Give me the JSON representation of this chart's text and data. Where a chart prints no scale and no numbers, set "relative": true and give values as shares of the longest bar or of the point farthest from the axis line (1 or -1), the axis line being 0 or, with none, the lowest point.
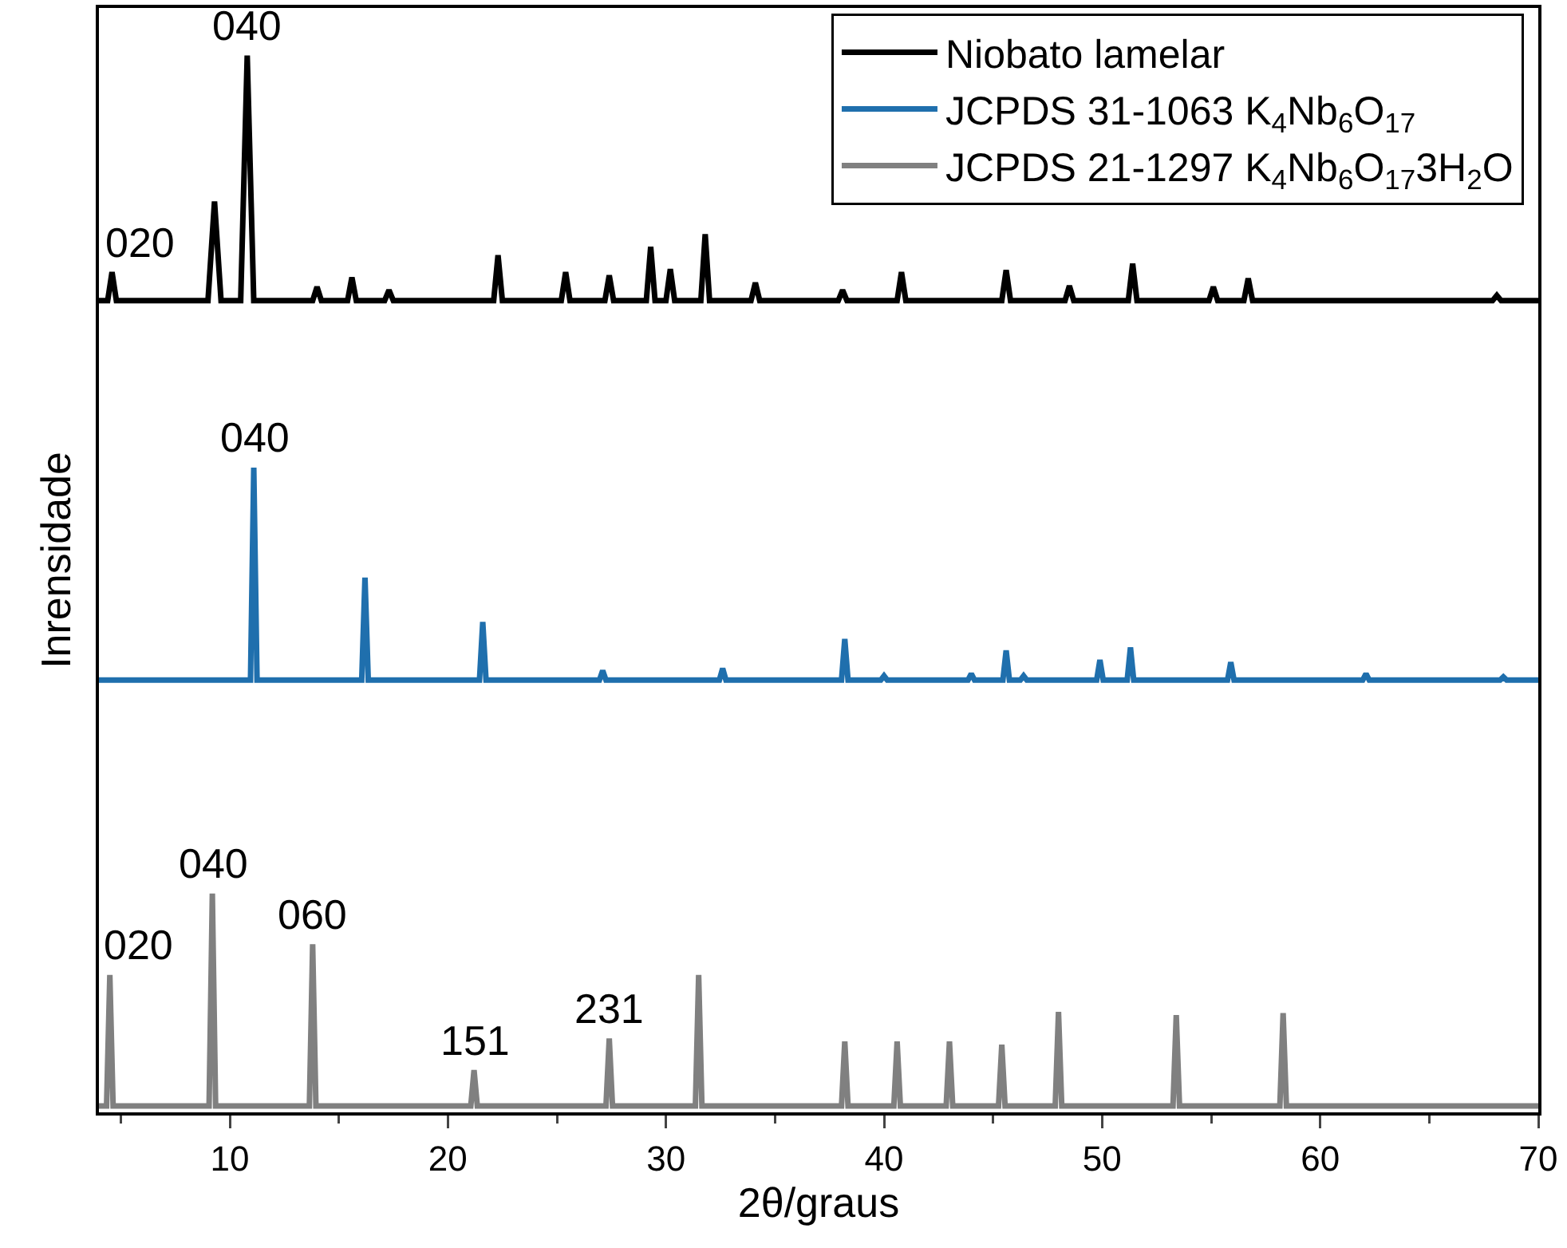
{
  "chart_data": {
    "type": "line",
    "relative": true,
    "xlabel": "2θ/graus",
    "ylabel": "Inrensidade",
    "xlim": [
      4,
      70
    ],
    "xticks": [
      10,
      20,
      30,
      40,
      50,
      60,
      70
    ],
    "legend": "top right",
    "grid": false,
    "marker": "none",
    "line_style": "solid",
    "series": [
      {
        "name": "Niobato lamelar",
        "color": "#000000",
        "x": [
          4,
          4.4,
          4.6,
          4.8,
          9.0,
          9.3,
          9.6,
          10.5,
          10.8,
          11.1,
          13.8,
          14.0,
          14.2,
          15.4,
          15.6,
          15.8,
          17.1,
          17.3,
          17.5,
          22.1,
          22.3,
          22.5,
          25.2,
          25.4,
          25.6,
          27.2,
          27.4,
          27.6,
          29.1,
          29.3,
          29.5,
          30.0,
          30.2,
          30.4,
          31.6,
          31.8,
          32.0,
          33.9,
          34.1,
          34.3,
          37.9,
          38.1,
          38.3,
          40.6,
          40.8,
          41.0,
          45.4,
          45.6,
          45.8,
          48.3,
          48.5,
          48.7,
          51.2,
          51.4,
          51.6,
          54.9,
          55.1,
          55.3,
          56.5,
          56.7,
          56.9,
          67.9,
          68.1,
          68.3,
          70
        ],
        "values": [
          0.768,
          0.768,
          0.795,
          0.768,
          0.768,
          0.862,
          0.768,
          0.768,
          1,
          0.768,
          0.768,
          0.781,
          0.768,
          0.768,
          0.79,
          0.768,
          0.768,
          0.778,
          0.768,
          0.768,
          0.811,
          0.768,
          0.768,
          0.795,
          0.768,
          0.768,
          0.792,
          0.768,
          0.768,
          0.819,
          0.768,
          0.768,
          0.798,
          0.768,
          0.768,
          0.831,
          0.768,
          0.768,
          0.785,
          0.768,
          0.768,
          0.778,
          0.768,
          0.768,
          0.795,
          0.768,
          0.768,
          0.797,
          0.768,
          0.768,
          0.782,
          0.768,
          0.768,
          0.803,
          0.768,
          0.768,
          0.781,
          0.768,
          0.768,
          0.789,
          0.768,
          0.768,
          0.773,
          0.768,
          0.768
        ]
      },
      {
        "name": "JCPDS 31-1063 K$_{4}$Nb$_{6}$O$_{17}$",
        "color": "#1f6fad",
        "x": [
          4,
          10.95,
          11.1,
          11.25,
          16.05,
          16.2,
          16.35,
          21.45,
          21.6,
          21.75,
          26.95,
          27.1,
          27.25,
          32.45,
          32.6,
          32.75,
          38.05,
          38.2,
          38.35,
          39.85,
          40.0,
          40.15,
          43.85,
          44.0,
          44.15,
          45.45,
          45.6,
          45.75,
          46.25,
          46.4,
          46.55,
          49.75,
          49.9,
          50.05,
          51.15,
          51.3,
          51.45,
          55.75,
          55.9,
          56.05,
          61.95,
          62.1,
          62.25,
          68.25,
          68.4,
          68.55,
          70
        ],
        "values": [
          0.409,
          0.409,
          0.61,
          0.409,
          0.409,
          0.506,
          0.409,
          0.409,
          0.464,
          0.409,
          0.409,
          0.418,
          0.409,
          0.409,
          0.42,
          0.409,
          0.409,
          0.448,
          0.409,
          0.409,
          0.413,
          0.409,
          0.409,
          0.415,
          0.409,
          0.409,
          0.437,
          0.409,
          0.409,
          0.413,
          0.409,
          0.409,
          0.428,
          0.409,
          0.409,
          0.44,
          0.409,
          0.409,
          0.426,
          0.409,
          0.409,
          0.415,
          0.409,
          0.409,
          0.412,
          0.409,
          0.409
        ]
      },
      {
        "name": "JCPDS 21-1297 K$_{4}$Nb$_{6}$O$_{17}$3H$_{2}$O",
        "color": "#808080",
        "x": [
          4,
          4.35,
          4.5,
          4.65,
          9.05,
          9.2,
          9.35,
          13.65,
          13.8,
          13.95,
          21.05,
          21.2,
          21.35,
          27.25,
          27.4,
          27.55,
          31.35,
          31.5,
          31.65,
          38.05,
          38.2,
          38.35,
          40.45,
          40.6,
          40.75,
          42.85,
          43.0,
          43.15,
          45.25,
          45.4,
          45.55,
          47.85,
          48.0,
          48.15,
          53.25,
          53.4,
          53.55,
          58.15,
          58.3,
          58.45,
          70
        ],
        "values": [
          0.006,
          0.006,
          0.13,
          0.006,
          0.006,
          0.207,
          0.006,
          0.006,
          0.159,
          0.006,
          0.006,
          0.04,
          0.006,
          0.006,
          0.07,
          0.006,
          0.006,
          0.13,
          0.006,
          0.006,
          0.067,
          0.006,
          0.006,
          0.067,
          0.006,
          0.006,
          0.067,
          0.006,
          0.006,
          0.064,
          0.006,
          0.006,
          0.095,
          0.006,
          0.006,
          0.092,
          0.006,
          0.006,
          0.094,
          0.006,
          0.006
        ]
      }
    ],
    "annotations": [
      {
        "text": "020",
        "x": 4.6,
        "y": 0.795
      },
      {
        "text": "040",
        "x": 10.8,
        "y": 1
      },
      {
        "text": "040",
        "x": 11.1,
        "y": 0.61
      },
      {
        "text": "020",
        "x": 4.5,
        "y": 0.13
      },
      {
        "text": "040",
        "x": 9.2,
        "y": 0.207
      },
      {
        "text": "060",
        "x": 13.8,
        "y": 0.159
      },
      {
        "text": "151",
        "x": 21.2,
        "y": 0.04
      },
      {
        "text": "231",
        "x": 27.4,
        "y": 0.07
      }
    ]
  }
}
